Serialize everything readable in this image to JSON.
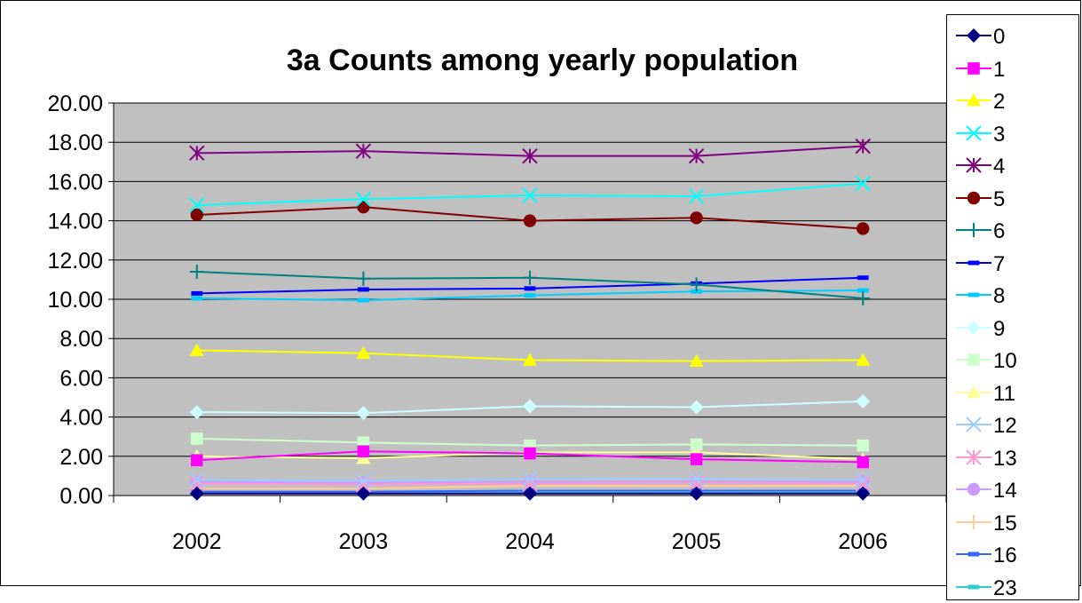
{
  "chart_data": {
    "type": "line",
    "title": "3a Counts among yearly population",
    "xlabel": "",
    "ylabel": "",
    "categories": [
      "2002",
      "2003",
      "2004",
      "2005",
      "2006"
    ],
    "ylim": [
      0,
      20
    ],
    "yticks": [
      "0.00",
      "2.00",
      "4.00",
      "6.00",
      "8.00",
      "10.00",
      "12.00",
      "14.00",
      "16.00",
      "18.00",
      "20.00"
    ],
    "grid": true,
    "plot_background": "#c0c0c0",
    "legend_position": "right",
    "series": [
      {
        "name": "0",
        "color": "#000080",
        "marker": "diamond",
        "values": [
          0.1,
          0.1,
          0.1,
          0.1,
          0.1
        ]
      },
      {
        "name": "1",
        "color": "#ff00ff",
        "marker": "square",
        "values": [
          1.8,
          2.25,
          2.15,
          1.85,
          1.7
        ]
      },
      {
        "name": "2",
        "color": "#ffff00",
        "marker": "triangle",
        "values": [
          7.4,
          7.25,
          6.9,
          6.85,
          6.9
        ]
      },
      {
        "name": "3",
        "color": "#00ffff",
        "marker": "x",
        "values": [
          14.8,
          15.1,
          15.3,
          15.25,
          15.9
        ]
      },
      {
        "name": "4",
        "color": "#800080",
        "marker": "star",
        "values": [
          17.45,
          17.55,
          17.3,
          17.3,
          17.8
        ]
      },
      {
        "name": "5",
        "color": "#800000",
        "marker": "circle",
        "values": [
          14.3,
          14.7,
          14.0,
          14.15,
          13.6
        ]
      },
      {
        "name": "6",
        "color": "#008080",
        "marker": "plus",
        "values": [
          11.4,
          11.05,
          11.1,
          10.75,
          10.05
        ]
      },
      {
        "name": "7",
        "color": "#0000ff",
        "marker": "dash",
        "values": [
          10.3,
          10.5,
          10.55,
          10.8,
          11.1
        ]
      },
      {
        "name": "8",
        "color": "#00ccff",
        "marker": "dash",
        "values": [
          10.05,
          9.95,
          10.2,
          10.4,
          10.45
        ]
      },
      {
        "name": "9",
        "color": "#ccffff",
        "marker": "diamond",
        "values": [
          4.25,
          4.2,
          4.55,
          4.5,
          4.8
        ]
      },
      {
        "name": "10",
        "color": "#ccffcc",
        "marker": "square",
        "values": [
          2.9,
          2.7,
          2.55,
          2.6,
          2.55
        ]
      },
      {
        "name": "11",
        "color": "#ffff99",
        "marker": "triangle",
        "values": [
          2.0,
          1.9,
          2.2,
          2.2,
          1.85
        ]
      },
      {
        "name": "12",
        "color": "#99ccff",
        "marker": "x",
        "values": [
          0.8,
          0.75,
          0.85,
          0.85,
          0.8
        ]
      },
      {
        "name": "13",
        "color": "#ff99cc",
        "marker": "star",
        "values": [
          0.6,
          0.55,
          0.6,
          0.65,
          0.6
        ]
      },
      {
        "name": "14",
        "color": "#cc99ff",
        "marker": "circle",
        "values": [
          0.7,
          0.65,
          0.7,
          0.7,
          0.7
        ]
      },
      {
        "name": "15",
        "color": "#ffcc99",
        "marker": "plus",
        "values": [
          0.35,
          0.35,
          0.5,
          0.5,
          0.5
        ]
      },
      {
        "name": "16",
        "color": "#3366ff",
        "marker": "dash",
        "values": [
          0.2,
          0.2,
          0.25,
          0.25,
          0.25
        ]
      },
      {
        "name": "23",
        "color": "#33cccc",
        "marker": "dash",
        "values": [
          0.15,
          0.15,
          0.15,
          0.15,
          0.15
        ]
      }
    ]
  }
}
